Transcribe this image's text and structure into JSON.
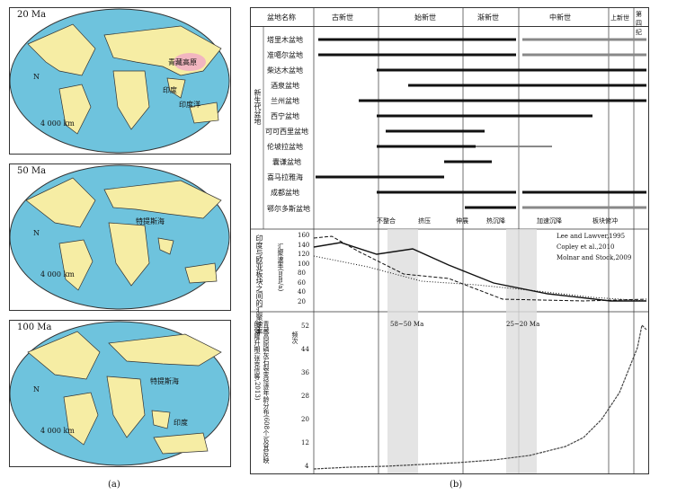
{
  "panel_a": {
    "caption": "(a)",
    "maps": [
      {
        "age": "20 Ma",
        "labels": {
          "plateau": "青藏高原",
          "india": "印度",
          "ocean": "印度洋"
        },
        "scale": "4 000 km"
      },
      {
        "age": "50 Ma",
        "labels": {
          "tethys": "特提斯海"
        },
        "scale": "4 000 km"
      },
      {
        "age": "100 Ma",
        "labels": {
          "tethys": "特提斯海",
          "india": "印度"
        },
        "scale": "4 000 km"
      }
    ],
    "north": "N"
  },
  "panel_b": {
    "caption": "(b)",
    "header": {
      "col0": "盆地名称",
      "epochs": [
        "古新世",
        "始新世",
        "渐新世",
        "中新世",
        "上新世",
        "第四纪"
      ]
    },
    "side_label": "新生代盆地",
    "basins": [
      "塔里木盆地",
      "准噶尔盆地",
      "柴达木盆地",
      "酒泉盆地",
      "兰州盆地",
      "西宁盆地",
      "可可西里盆地",
      "伦坡拉盆地",
      "囊谦盆地",
      "喜马拉雅海",
      "成都盆地",
      "鄂尔多斯盆地"
    ],
    "legend": [
      "不整合",
      "挤压",
      "伸展",
      "热沉降",
      "加速沉降",
      "板块俯冲"
    ],
    "rate_axis_label": "印度与欧亚板块之间的汇聚速率",
    "rate_unit": "汇聚速率(mm/a)",
    "rate_ticks": [
      "160",
      "140",
      "120",
      "100",
      "80",
      "60",
      "40",
      "20"
    ],
    "rate_legend": [
      "Lee and Lawver,1995",
      "Copley et al.,2010",
      "Molnar and Stock,2009"
    ],
    "band1": "58~50 Ma",
    "band2": "25~20 Ma",
    "hist_axis_label": "青藏高原磷灰石裂变径迹年龄分布(608个)及其反映的强隆升期(张克信等,2013)",
    "hist_unit": "频次",
    "hist_ticks": [
      "52",
      "44",
      "36",
      "28",
      "20",
      "12",
      "4"
    ]
  }
}
